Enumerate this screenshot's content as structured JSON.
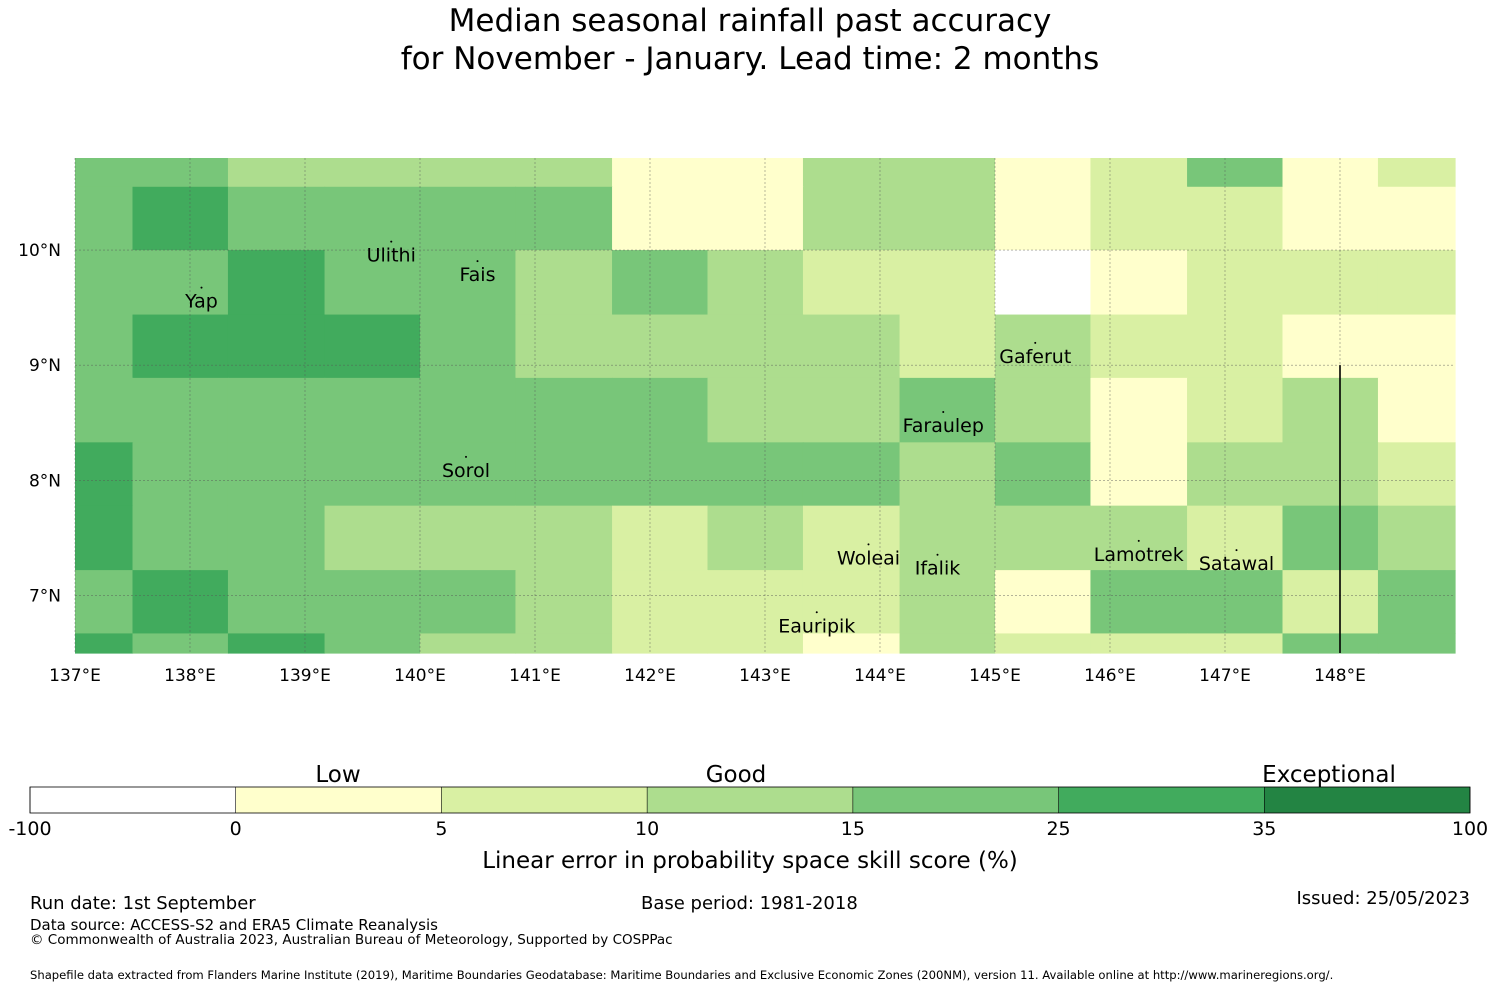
{
  "title": {
    "line1": "Median seasonal rainfall past accuracy",
    "line2": "for November - January. Lead time: 2 months"
  },
  "map": {
    "lon_range": [
      137.0,
      149.0
    ],
    "lat_range": [
      6.5,
      10.8
    ],
    "lon_ticks": [
      "137°E",
      "138°E",
      "139°E",
      "140°E",
      "141°E",
      "142°E",
      "143°E",
      "144°E",
      "145°E",
      "146°E",
      "147°E",
      "148°E"
    ],
    "lat_ticks": [
      "10°N",
      "9°N",
      "8°N",
      "7°N"
    ],
    "gridlines": true,
    "boundary_line_lon": 148.0,
    "boundary_line_lat_top": 9.0,
    "grid_cells": {
      "lon_edges": [
        137.0,
        137.5,
        138.33,
        139.17,
        140.0,
        140.83,
        141.67,
        142.5,
        143.33,
        144.17,
        145.0,
        145.83,
        146.67,
        147.5,
        148.33,
        149.0
      ],
      "lat_edges": [
        10.8,
        10.55,
        10.0,
        9.44,
        8.89,
        8.33,
        7.78,
        7.22,
        6.67,
        6.5
      ],
      "classes": [
        [
          4,
          4,
          3,
          3,
          3,
          3,
          1,
          1,
          3,
          3,
          1,
          2,
          4,
          1,
          2
        ],
        [
          4,
          5,
          4,
          4,
          4,
          4,
          1,
          1,
          3,
          3,
          1,
          2,
          2,
          1,
          1
        ],
        [
          4,
          4,
          5,
          4,
          4,
          3,
          4,
          3,
          2,
          2,
          0,
          1,
          2,
          2,
          2
        ],
        [
          4,
          5,
          5,
          5,
          4,
          3,
          3,
          3,
          3,
          2,
          3,
          2,
          2,
          1,
          1
        ],
        [
          4,
          4,
          4,
          4,
          4,
          4,
          4,
          3,
          3,
          4,
          3,
          1,
          2,
          3,
          1
        ],
        [
          5,
          4,
          4,
          4,
          4,
          4,
          4,
          4,
          4,
          3,
          4,
          1,
          3,
          3,
          2
        ],
        [
          5,
          4,
          4,
          3,
          3,
          3,
          2,
          3,
          2,
          3,
          3,
          3,
          2,
          4,
          3
        ],
        [
          4,
          5,
          4,
          4,
          4,
          3,
          2,
          2,
          2,
          3,
          1,
          4,
          4,
          2,
          4
        ],
        [
          5,
          4,
          5,
          4,
          3,
          3,
          2,
          2,
          1,
          3,
          2,
          2,
          2,
          4,
          4
        ]
      ]
    },
    "place_labels": [
      {
        "name": "Ulithi",
        "lon": 139.75,
        "lat": 9.9
      },
      {
        "name": "Fais",
        "lon": 140.5,
        "lat": 9.73
      },
      {
        "name": "Yap",
        "lon": 138.1,
        "lat": 9.5
      },
      {
        "name": "Gaferut",
        "lon": 145.35,
        "lat": 9.02
      },
      {
        "name": "Faraulep",
        "lon": 144.55,
        "lat": 8.42
      },
      {
        "name": "Sorol",
        "lon": 140.4,
        "lat": 8.03
      },
      {
        "name": "Woleai",
        "lon": 143.9,
        "lat": 7.27
      },
      {
        "name": "Ifalik",
        "lon": 144.5,
        "lat": 7.18
      },
      {
        "name": "Lamotrek",
        "lon": 146.25,
        "lat": 7.3
      },
      {
        "name": "Satawal",
        "lon": 147.1,
        "lat": 7.22
      },
      {
        "name": "Eauripik",
        "lon": 143.45,
        "lat": 6.68
      }
    ]
  },
  "legend": {
    "class_colors": [
      "#ffffff",
      "#ffffcc",
      "#d9f0a3",
      "#addd8e",
      "#78c679",
      "#41ab5d",
      "#238443"
    ],
    "bounds": [
      "-100",
      "0",
      "5",
      "10",
      "15",
      "25",
      "35",
      "100"
    ],
    "category_labels": {
      "low": "Low",
      "good": "Good",
      "exceptional": "Exceptional"
    },
    "axis_label": "Linear error in probability space skill score (%)"
  },
  "footer": {
    "run_date": "Run date: 1st September",
    "base_period": "Base period: 1981-2018",
    "issued": "Issued: 25/05/2023",
    "data_source": "Data source: ACCESS-S2 and ERA5 Climate Reanalysis",
    "copyright": "© Commonwealth of Australia 2023, Australian Bureau of Meteorology, Supported by COSPPac",
    "shapefile": "Shapefile data extracted from Flanders Marine Institute (2019), Maritime Boundaries Geodatabase: Maritime Boundaries and Exclusive Economic Zones (200NM), version 11. Available online at http://www.marineregions.org/."
  }
}
